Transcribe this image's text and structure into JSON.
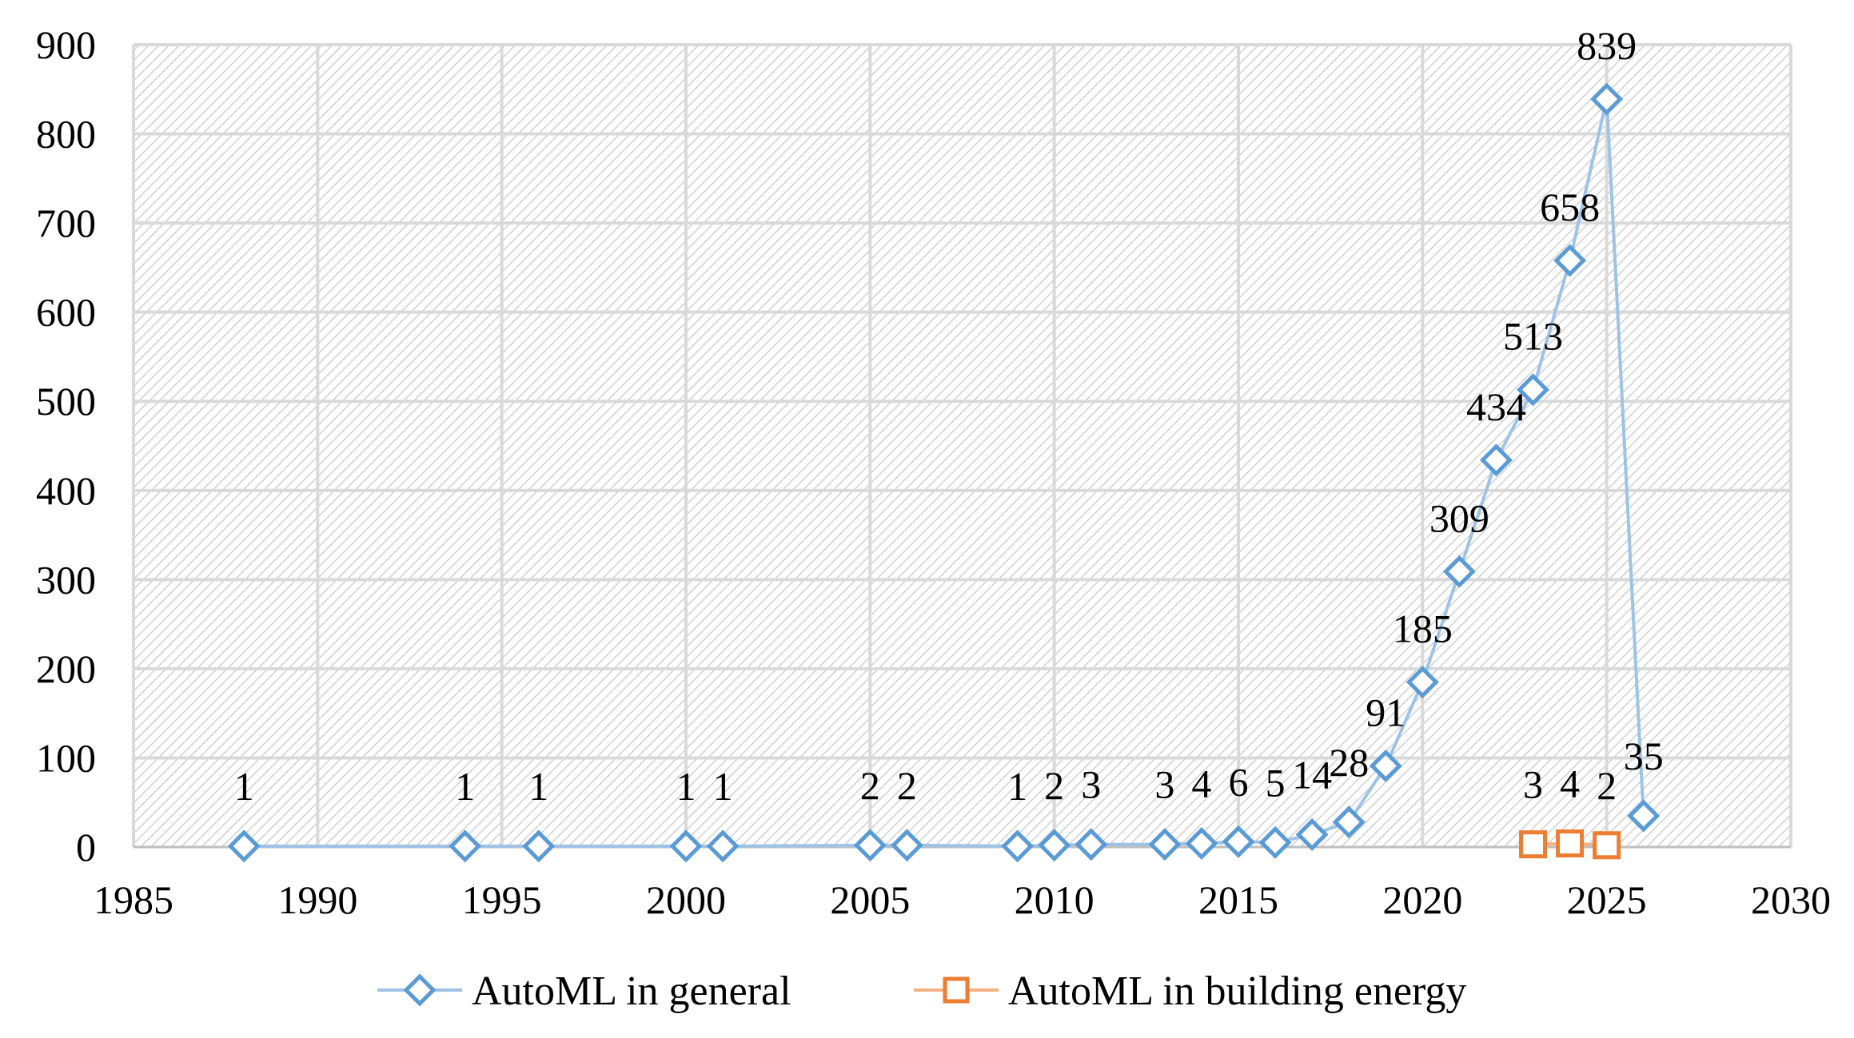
{
  "chart_data": {
    "type": "scatter",
    "title": "",
    "xlabel": "",
    "ylabel": "",
    "xlim": [
      1985,
      2030
    ],
    "ylim": [
      0,
      900
    ],
    "x_ticks": [
      1985,
      1990,
      1995,
      2000,
      2005,
      2010,
      2015,
      2020,
      2025,
      2030
    ],
    "y_ticks": [
      0,
      100,
      200,
      300,
      400,
      500,
      600,
      700,
      800,
      900
    ],
    "grid": true,
    "plot_background": "hatched",
    "legend_position": "bottom",
    "series": [
      {
        "name": "AutoML in general",
        "marker": "diamond",
        "color": "#5b9bd5",
        "line_color": "#9dc3e6",
        "x": [
          1988,
          1994,
          1996,
          2000,
          2001,
          2005,
          2006,
          2009,
          2010,
          2011,
          2013,
          2014,
          2015,
          2016,
          2017,
          2018,
          2019,
          2020,
          2021,
          2022,
          2023,
          2024,
          2025,
          2026
        ],
        "y": [
          1,
          1,
          1,
          1,
          1,
          2,
          2,
          1,
          2,
          3,
          3,
          4,
          6,
          5,
          14,
          28,
          91,
          185,
          309,
          434,
          513,
          658,
          839,
          35
        ],
        "labels": [
          "1",
          "1",
          "1",
          "1",
          "1",
          "2",
          "2",
          "1",
          "2",
          "3",
          "3",
          "4",
          "6",
          "5",
          "14",
          "28",
          "91",
          "185",
          "309",
          "434",
          "513",
          "658",
          "839",
          "35"
        ]
      },
      {
        "name": "AutoML in building energy",
        "marker": "square",
        "color": "#ed7d31",
        "line_color": "#f4b183",
        "x": [
          2023,
          2024,
          2025
        ],
        "y": [
          3,
          4,
          2
        ],
        "labels": [
          "3",
          "4",
          "2"
        ]
      }
    ]
  }
}
